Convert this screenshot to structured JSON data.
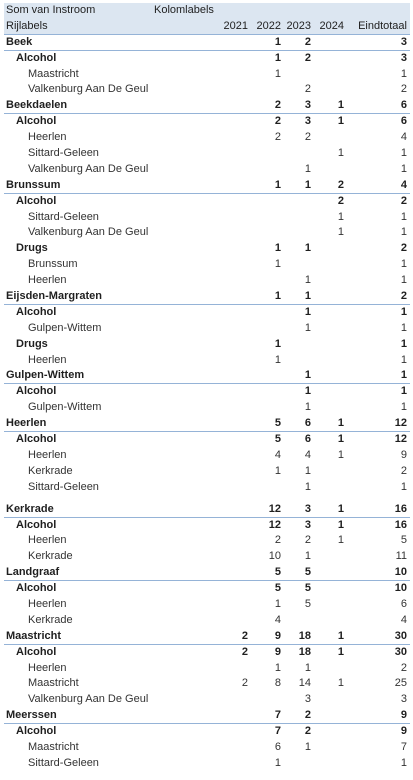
{
  "header": {
    "top_left": "Som van Instroom",
    "column_labels": "Kolomlabels",
    "row_labels": "Rijlabels",
    "columns": [
      "2021",
      "2022",
      "2023",
      "2024",
      "Eindtotaal"
    ]
  },
  "rows": [
    {
      "level": 0,
      "label": "Beek",
      "values": [
        "",
        "1",
        "2",
        "",
        "3"
      ]
    },
    {
      "level": 1,
      "label": "Alcohol",
      "values": [
        "",
        "1",
        "2",
        "",
        "3"
      ]
    },
    {
      "level": 2,
      "label": "Maastricht",
      "values": [
        "",
        "1",
        "",
        "",
        "1"
      ]
    },
    {
      "level": 2,
      "label": "Valkenburg Aan De Geul",
      "values": [
        "",
        "",
        "2",
        "",
        "2"
      ]
    },
    {
      "level": 0,
      "label": "Beekdaelen",
      "values": [
        "",
        "2",
        "3",
        "1",
        "6"
      ]
    },
    {
      "level": 1,
      "label": "Alcohol",
      "values": [
        "",
        "2",
        "3",
        "1",
        "6"
      ]
    },
    {
      "level": 2,
      "label": "Heerlen",
      "values": [
        "",
        "2",
        "2",
        "",
        "4"
      ]
    },
    {
      "level": 2,
      "label": "Sittard-Geleen",
      "values": [
        "",
        "",
        "",
        "1",
        "1"
      ]
    },
    {
      "level": 2,
      "label": "Valkenburg Aan De Geul",
      "values": [
        "",
        "",
        "1",
        "",
        "1"
      ]
    },
    {
      "level": 0,
      "label": "Brunssum",
      "values": [
        "",
        "1",
        "1",
        "2",
        "4"
      ]
    },
    {
      "level": 1,
      "label": "Alcohol",
      "values": [
        "",
        "",
        "",
        "2",
        "2"
      ]
    },
    {
      "level": 2,
      "label": "Sittard-Geleen",
      "values": [
        "",
        "",
        "",
        "1",
        "1"
      ]
    },
    {
      "level": 2,
      "label": "Valkenburg Aan De Geul",
      "values": [
        "",
        "",
        "",
        "1",
        "1"
      ]
    },
    {
      "level": 1,
      "label": "Drugs",
      "values": [
        "",
        "1",
        "1",
        "",
        "2"
      ]
    },
    {
      "level": 2,
      "label": "Brunssum",
      "values": [
        "",
        "1",
        "",
        "",
        "1"
      ]
    },
    {
      "level": 2,
      "label": "Heerlen",
      "values": [
        "",
        "",
        "1",
        "",
        "1"
      ]
    },
    {
      "level": 0,
      "label": "Eijsden-Margraten",
      "values": [
        "",
        "1",
        "1",
        "",
        "2"
      ]
    },
    {
      "level": 1,
      "label": "Alcohol",
      "values": [
        "",
        "",
        "1",
        "",
        "1"
      ]
    },
    {
      "level": 2,
      "label": "Gulpen-Wittem",
      "values": [
        "",
        "",
        "1",
        "",
        "1"
      ]
    },
    {
      "level": 1,
      "label": "Drugs",
      "values": [
        "",
        "1",
        "",
        "",
        "1"
      ]
    },
    {
      "level": 2,
      "label": "Heerlen",
      "values": [
        "",
        "1",
        "",
        "",
        "1"
      ]
    },
    {
      "level": 0,
      "label": "Gulpen-Wittem",
      "values": [
        "",
        "",
        "1",
        "",
        "1"
      ]
    },
    {
      "level": 1,
      "label": "Alcohol",
      "values": [
        "",
        "",
        "1",
        "",
        "1"
      ]
    },
    {
      "level": 2,
      "label": "Gulpen-Wittem",
      "values": [
        "",
        "",
        "1",
        "",
        "1"
      ]
    },
    {
      "level": 0,
      "label": "Heerlen",
      "values": [
        "",
        "5",
        "6",
        "1",
        "12"
      ]
    },
    {
      "level": 1,
      "label": "Alcohol",
      "values": [
        "",
        "5",
        "6",
        "1",
        "12"
      ]
    },
    {
      "level": 2,
      "label": "Heerlen",
      "values": [
        "",
        "4",
        "4",
        "1",
        "9"
      ]
    },
    {
      "level": 2,
      "label": "Kerkrade",
      "values": [
        "",
        "1",
        "1",
        "",
        "2"
      ]
    },
    {
      "level": 2,
      "label": "Sittard-Geleen",
      "values": [
        "",
        "",
        "1",
        "",
        "1"
      ]
    },
    {
      "level": "gap"
    },
    {
      "level": 0,
      "label": "Kerkrade",
      "values": [
        "",
        "12",
        "3",
        "1",
        "16"
      ]
    },
    {
      "level": 1,
      "label": "Alcohol",
      "values": [
        "",
        "12",
        "3",
        "1",
        "16"
      ]
    },
    {
      "level": 2,
      "label": "Heerlen",
      "values": [
        "",
        "2",
        "2",
        "1",
        "5"
      ]
    },
    {
      "level": 2,
      "label": "Kerkrade",
      "values": [
        "",
        "10",
        "1",
        "",
        "11"
      ]
    },
    {
      "level": 0,
      "label": "Landgraaf",
      "values": [
        "",
        "5",
        "5",
        "",
        "10"
      ]
    },
    {
      "level": 1,
      "label": "Alcohol",
      "values": [
        "",
        "5",
        "5",
        "",
        "10"
      ]
    },
    {
      "level": 2,
      "label": "Heerlen",
      "values": [
        "",
        "1",
        "5",
        "",
        "6"
      ]
    },
    {
      "level": 2,
      "label": "Kerkrade",
      "values": [
        "",
        "4",
        "",
        "",
        "4"
      ]
    },
    {
      "level": 0,
      "label": "Maastricht",
      "values": [
        "2",
        "9",
        "18",
        "1",
        "30"
      ]
    },
    {
      "level": 1,
      "label": "Alcohol",
      "values": [
        "2",
        "9",
        "18",
        "1",
        "30"
      ]
    },
    {
      "level": 2,
      "label": "Heerlen",
      "values": [
        "",
        "1",
        "1",
        "",
        "2"
      ]
    },
    {
      "level": 2,
      "label": "Maastricht",
      "values": [
        "2",
        "8",
        "14",
        "1",
        "25"
      ]
    },
    {
      "level": 2,
      "label": "Valkenburg Aan De Geul",
      "values": [
        "",
        "",
        "3",
        "",
        "3"
      ]
    },
    {
      "level": 0,
      "label": "Meerssen",
      "values": [
        "",
        "7",
        "2",
        "",
        "9"
      ]
    },
    {
      "level": 1,
      "label": "Alcohol",
      "values": [
        "",
        "7",
        "2",
        "",
        "9"
      ]
    },
    {
      "level": 2,
      "label": "Maastricht",
      "values": [
        "",
        "6",
        "1",
        "",
        "7"
      ]
    },
    {
      "level": 2,
      "label": "Sittard-Geleen",
      "values": [
        "",
        "1",
        "",
        "",
        "1"
      ]
    }
  ]
}
